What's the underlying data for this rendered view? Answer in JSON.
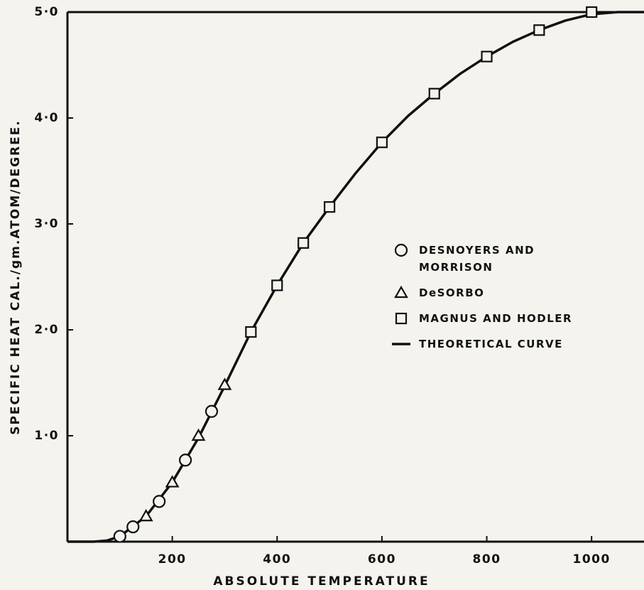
{
  "chart_data": {
    "type": "scatter",
    "xlabel": "ABSOLUTE TEMPERATURE",
    "ylabel": "SPECIFIC HEAT CAL./gm.ATOM/DEGREE.",
    "xlim": [
      0,
      1100
    ],
    "ylim": [
      0,
      5.0
    ],
    "xticks": [
      200,
      400,
      600,
      800,
      1000
    ],
    "yticks": [
      {
        "value": 1.0,
        "label": "1·0"
      },
      {
        "value": 2.0,
        "label": "2·0"
      },
      {
        "value": 3.0,
        "label": "3·0"
      },
      {
        "value": 4.0,
        "label": "4·0"
      },
      {
        "value": 5.0,
        "label": "5·0"
      }
    ],
    "grid": false,
    "legend": "right",
    "series": [
      {
        "name": "DESNOYERS AND MORRISON",
        "color": "#111111",
        "marker": "circle",
        "x": [
          100,
          125,
          175,
          225,
          275
        ],
        "values": [
          0.05,
          0.14,
          0.38,
          0.77,
          1.23
        ]
      },
      {
        "name": "DeSORBO",
        "color": "#111111",
        "marker": "triangle",
        "x": [
          150,
          200,
          250,
          300
        ],
        "values": [
          0.24,
          0.56,
          1.0,
          1.48
        ]
      },
      {
        "name": "MAGNUS AND HODLER",
        "color": "#111111",
        "marker": "square",
        "x": [
          350,
          400,
          450,
          500,
          600,
          700,
          800,
          900,
          1000
        ],
        "values": [
          1.98,
          2.42,
          2.82,
          3.16,
          3.77,
          4.23,
          4.58,
          4.83,
          5.0
        ]
      },
      {
        "name": "THEORETICAL CURVE",
        "color": "#111111",
        "marker": "line",
        "x": [
          0,
          50,
          75,
          100,
          150,
          200,
          250,
          300,
          350,
          400,
          450,
          500,
          550,
          600,
          650,
          700,
          750,
          800,
          850,
          900,
          950,
          1000,
          1050,
          1100
        ],
        "values": [
          0,
          0.0,
          0.01,
          0.05,
          0.24,
          0.56,
          0.98,
          1.47,
          1.98,
          2.42,
          2.82,
          3.16,
          3.48,
          3.77,
          4.02,
          4.23,
          4.42,
          4.58,
          4.72,
          4.83,
          4.92,
          4.98,
          5.0,
          5.0
        ]
      }
    ]
  }
}
